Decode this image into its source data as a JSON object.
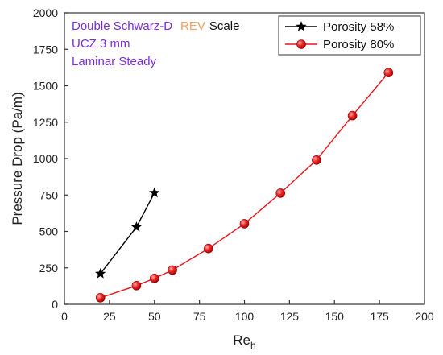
{
  "chart_data": {
    "type": "line",
    "xlabel": "Re",
    "xlabel_sub": "h",
    "ylabel": "Pressure Drop (Pa/m)",
    "xlim": [
      0,
      200
    ],
    "ylim": [
      0,
      2000
    ],
    "xticks": [
      0,
      25,
      50,
      75,
      100,
      125,
      150,
      175,
      200
    ],
    "yticks": [
      0,
      250,
      500,
      750,
      1000,
      1250,
      1500,
      1750,
      2000
    ],
    "grid": false,
    "legend_position": "top-right",
    "annotations": [
      {
        "text": "Double Schwarz-D",
        "color": "#7B2BE2"
      },
      {
        "text": "REV",
        "color": "#F0A060"
      },
      {
        "text": "Scale",
        "color": "#111111"
      },
      {
        "text": "UCZ 3 mm",
        "color": "#7B2BE2"
      },
      {
        "text": "Laminar Steady",
        "color": "#7B2BE2"
      }
    ],
    "series": [
      {
        "name": "Porosity 58%",
        "marker": "star",
        "color": "#000000",
        "x": [
          20,
          40,
          50
        ],
        "y": [
          210,
          530,
          765
        ]
      },
      {
        "name": "Porosity 80%",
        "marker": "circle",
        "color": "#E8141B",
        "x": [
          20,
          40,
          50,
          60,
          80,
          100,
          120,
          140,
          160,
          180
        ],
        "y": [
          45,
          128,
          178,
          235,
          383,
          553,
          763,
          990,
          1295,
          1590
        ]
      }
    ]
  }
}
